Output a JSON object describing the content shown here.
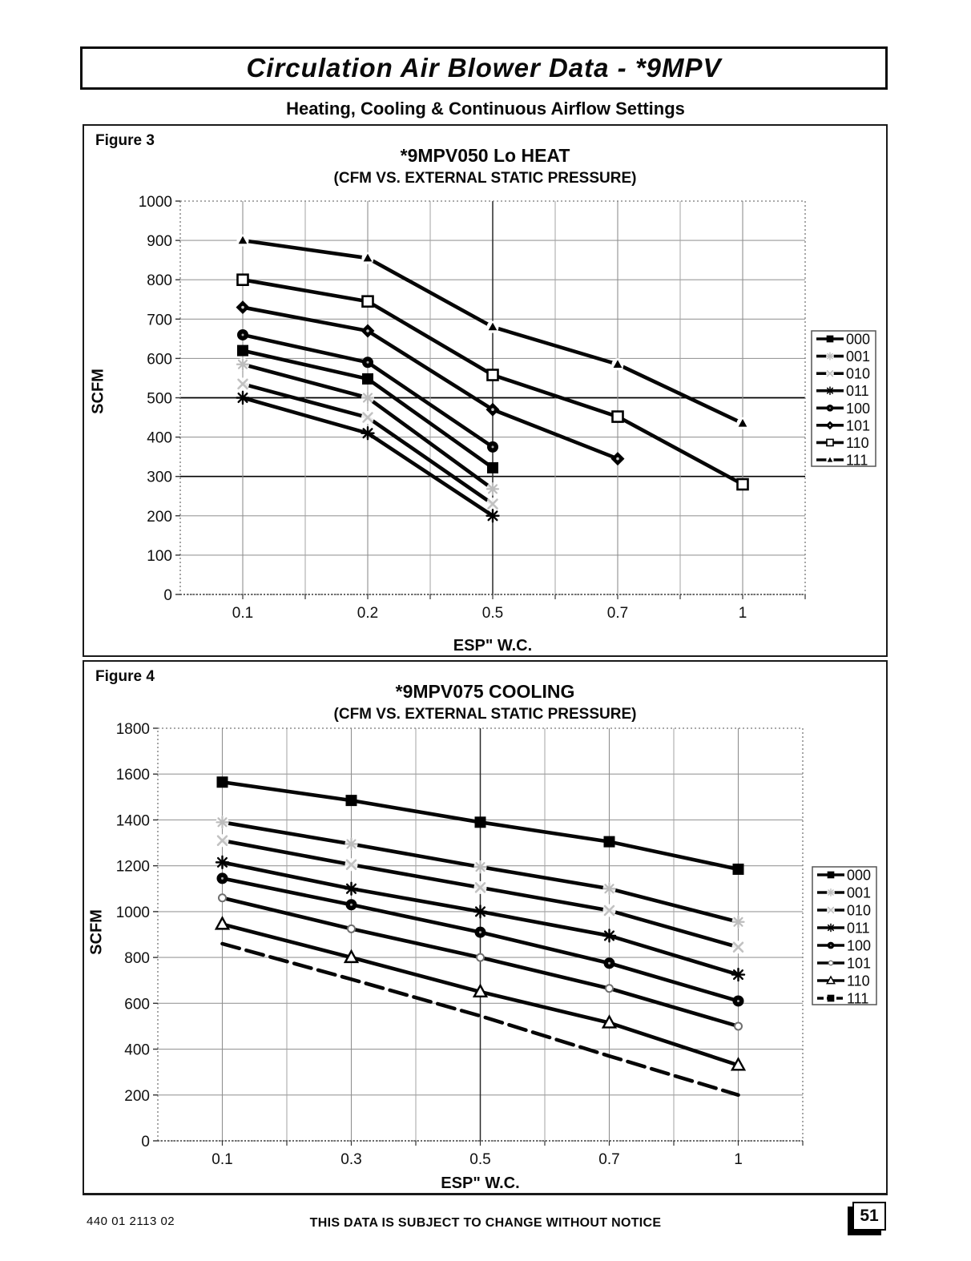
{
  "page": {
    "header_title": "Circulation Air Blower Data - *9MPV",
    "subtitle": "Heating, Cooling & Continuous Airflow Settings",
    "footer": {
      "doc_number": "440 01 2113 02",
      "notice": "THIS DATA IS SUBJECT TO CHANGE WITHOUT NOTICE",
      "page_number": "51"
    }
  },
  "chart_data": [
    {
      "id": "figure3",
      "figure_label": "Figure 3",
      "type": "line",
      "title": "*9MPV050 Lo HEAT",
      "subtitle": "(CFM VS. EXTERNAL STATIC PRESSURE)",
      "xlabel": "ESP\" W.C.",
      "ylabel": "SCFM",
      "ylim": [
        0,
        1000
      ],
      "ytick_step": 100,
      "grid": true,
      "legend_position": "right",
      "categories": [
        "0.1",
        "0.2",
        "0.5",
        "0.7",
        "1"
      ],
      "dark_h_values": [
        500,
        300
      ],
      "dark_v_category_indexes": [
        2
      ],
      "series": [
        {
          "name": "000",
          "marker": "filled-square",
          "dash": "solid",
          "values": [
            620,
            548,
            322,
            null,
            null
          ]
        },
        {
          "name": "001",
          "marker": "light-asterisk",
          "dash": "solid",
          "values": [
            585,
            500,
            268,
            null,
            null
          ]
        },
        {
          "name": "010",
          "marker": "light-x",
          "dash": "solid",
          "values": [
            535,
            450,
            230,
            null,
            null
          ]
        },
        {
          "name": "011",
          "marker": "asterisk",
          "dash": "solid",
          "values": [
            500,
            410,
            200,
            null,
            null
          ]
        },
        {
          "name": "100",
          "marker": "filled-circle",
          "dash": "solid",
          "values": [
            660,
            590,
            375,
            null,
            null
          ]
        },
        {
          "name": "101",
          "marker": "diamond",
          "dash": "solid",
          "values": [
            730,
            670,
            470,
            345,
            null
          ]
        },
        {
          "name": "110",
          "marker": "open-square",
          "dash": "solid",
          "values": [
            800,
            745,
            558,
            452,
            280
          ]
        },
        {
          "name": "111",
          "marker": "small-triangle",
          "dash": "solid",
          "values": [
            900,
            855,
            680,
            585,
            435
          ]
        }
      ]
    },
    {
      "id": "figure4",
      "figure_label": "Figure 4",
      "type": "line",
      "title": "*9MPV075 COOLING",
      "subtitle": "(CFM VS. EXTERNAL STATIC PRESSURE)",
      "xlabel": "ESP\" W.C.",
      "ylabel": "SCFM",
      "ylim": [
        0,
        1800
      ],
      "ytick_step": 200,
      "grid": true,
      "legend_position": "right",
      "categories": [
        "0.1",
        "0.3",
        "0.5",
        "0.7",
        "1"
      ],
      "dark_h_values": [],
      "dark_v_category_indexes": [
        2
      ],
      "series": [
        {
          "name": "000",
          "marker": "filled-square",
          "dash": "solid",
          "values": [
            1565,
            1485,
            1390,
            1305,
            1185
          ]
        },
        {
          "name": "001",
          "marker": "light-asterisk",
          "dash": "solid",
          "values": [
            1390,
            1295,
            1195,
            1100,
            955
          ]
        },
        {
          "name": "010",
          "marker": "light-x",
          "dash": "solid",
          "values": [
            1310,
            1205,
            1105,
            1005,
            845
          ]
        },
        {
          "name": "011",
          "marker": "asterisk",
          "dash": "solid",
          "values": [
            1215,
            1100,
            1000,
            895,
            725
          ]
        },
        {
          "name": "100",
          "marker": "filled-circle",
          "dash": "solid",
          "values": [
            1145,
            1030,
            910,
            775,
            610
          ]
        },
        {
          "name": "101",
          "marker": "light-dot",
          "dash": "solid",
          "values": [
            1060,
            925,
            800,
            665,
            500
          ]
        },
        {
          "name": "110",
          "marker": "open-triangle",
          "dash": "solid",
          "values": [
            945,
            800,
            650,
            515,
            330
          ]
        },
        {
          "name": "111",
          "marker": "none",
          "dash": "dashed",
          "values": [
            860,
            705,
            545,
            370,
            200
          ]
        }
      ]
    }
  ]
}
